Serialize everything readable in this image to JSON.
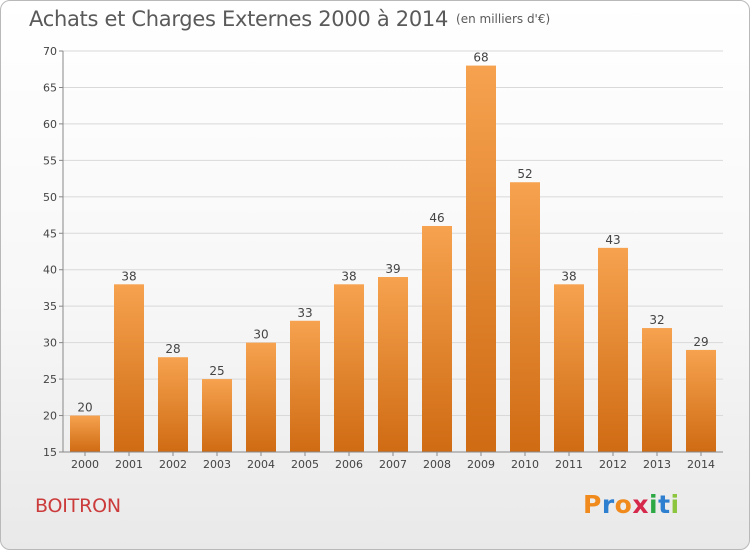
{
  "header": {
    "title": "Achats et Charges Externes 2000 à 2014",
    "unit": "(en milliers d'€)"
  },
  "footer": {
    "commune": "BOITRON",
    "logo": [
      "P",
      "r",
      "o",
      "x",
      "i",
      "t",
      "i"
    ],
    "logo_colors": [
      "#f08a1c",
      "#2e7fd0",
      "#f08a1c",
      "#d6284a",
      "#2ea845",
      "#2e7fd0",
      "#8cc63f"
    ]
  },
  "colors": {
    "bar_top": "#f6a24f",
    "bar_bottom": "#cf6b13",
    "grid": "#d9d9d9",
    "axis": "#888888",
    "title": "#5a5a5a",
    "commune": "#cc3b3b"
  },
  "chart_data": {
    "type": "bar",
    "title": "Achats et Charges Externes 2000 à 2014",
    "subtitle": "(en milliers d'€)",
    "xlabel": "",
    "ylabel": "",
    "categories": [
      "2000",
      "2001",
      "2002",
      "2003",
      "2004",
      "2005",
      "2006",
      "2007",
      "2008",
      "2009",
      "2010",
      "2011",
      "2012",
      "2013",
      "2014"
    ],
    "values": [
      20,
      38,
      28,
      25,
      30,
      33,
      38,
      39,
      46,
      68,
      52,
      38,
      43,
      32,
      29
    ],
    "ylim": [
      15,
      70
    ],
    "yticks": [
      15,
      20,
      25,
      30,
      35,
      40,
      45,
      50,
      55,
      60,
      65,
      70
    ],
    "grid": true,
    "legend": "none"
  }
}
